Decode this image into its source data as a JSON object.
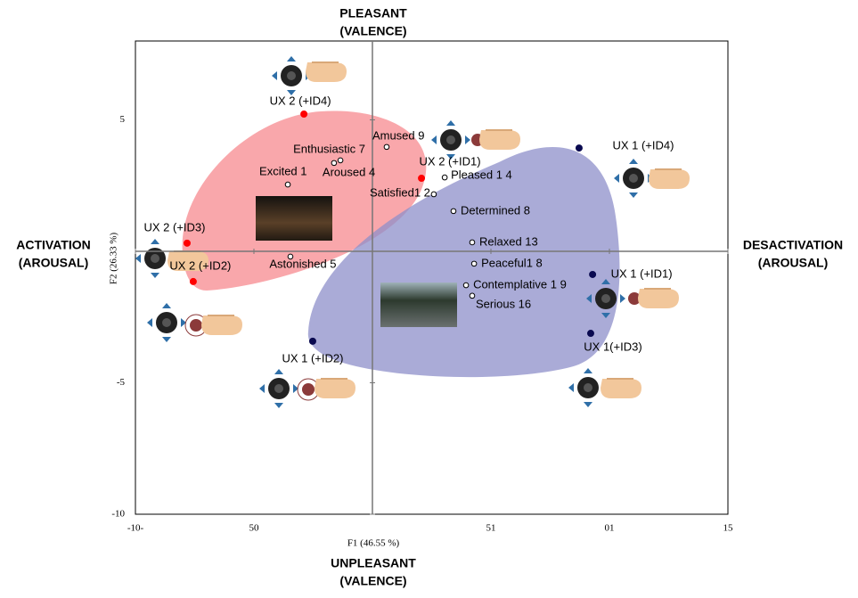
{
  "chart_data": {
    "type": "scatter",
    "x_label": "F1 (46.55 %)",
    "y_label": "F2 (26.33 %)",
    "top_label": [
      "PLEASANT",
      "(VALENCE)"
    ],
    "bottom_label": [
      "UNPLEASANT",
      "(VALENCE)"
    ],
    "left_label": [
      "ACTIVATION",
      "(AROUSAL)"
    ],
    "right_label": [
      "DESACTIVATION",
      "(AROUSAL)"
    ],
    "xlim": [
      -10,
      15
    ],
    "ylim": [
      -10,
      8
    ],
    "xticks": [
      {
        "value": -10,
        "label": "-10-"
      },
      {
        "value": -5,
        "label": "50"
      },
      {
        "value": 5,
        "label": "51"
      },
      {
        "value": 10,
        "label": "01"
      },
      15
    ],
    "yticks": [
      -10,
      -5,
      5
    ],
    "series": [
      {
        "marker": "hollow",
        "color": "#000000",
        "labels": [
          "Amused  9",
          "Enthusiastic  7",
          "Excited  1",
          "Aroused 4",
          "Pleased 1 4",
          "Satisfied1  2",
          "Determined 8",
          "Relaxed 13",
          "Peaceful1  8",
          "Contemplative 1  9",
          "Serious 16",
          "Astonished  5"
        ],
        "x": [
          0.6,
          -1.35,
          -3.57,
          -1.62,
          3.05,
          2.59,
          3.42,
          4.21,
          4.29,
          3.95,
          4.21,
          -3.46
        ],
        "y": [
          3.97,
          3.46,
          2.54,
          3.36,
          2.81,
          2.17,
          1.53,
          0.34,
          -0.47,
          -1.29,
          -1.69,
          -0.2
        ]
      },
      {
        "marker": "filled",
        "color": "#ff0000",
        "labels": [
          "UX 2 (+ID4)",
          "UX 2 (+ID1)",
          "UX 2 (+ID3)",
          "UX 2 (+ID2)"
        ],
        "x": [
          -2.89,
          2.07,
          -7.82,
          -7.56
        ],
        "y": [
          5.22,
          2.78,
          0.31,
          -1.15
        ]
      },
      {
        "marker": "filled",
        "color": "#0a0a50",
        "labels": [
          "UX 1 (+ID4)",
          "UX 1 (+ID1)",
          "UX 1(+ID3)",
          "UX 1 (+ID2)"
        ],
        "x": [
          8.72,
          9.29,
          9.21,
          -2.52
        ],
        "y": [
          3.93,
          -0.88,
          -3.12,
          -3.42
        ]
      }
    ]
  }
}
